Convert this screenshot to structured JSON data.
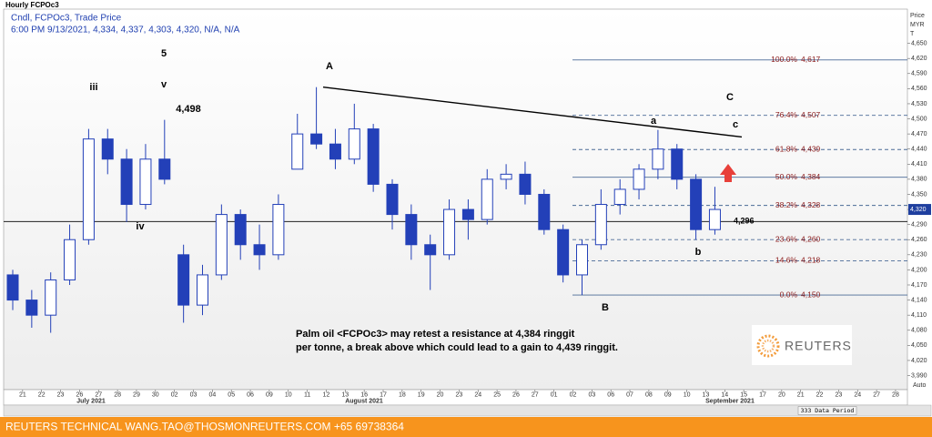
{
  "chart_data": {
    "type": "candlestick",
    "title": "Hourly FCPOc3",
    "subtitle": "Cndl, FCPOc3, Trade Price",
    "info": "6:00 PM 9/13/2021, 4,334, 4,337, 4,303, 4,320, N/A, N/A",
    "y_label_lines": [
      "Price",
      "MYR",
      "T"
    ],
    "months": [
      "July 2021",
      "August 2021",
      "September 2021"
    ],
    "categories": [
      null,
      "21",
      "22",
      "23",
      "26",
      "27",
      "28",
      "29",
      "30",
      "02",
      "03",
      "04",
      "05",
      "06",
      "09",
      "10",
      "11",
      "12",
      "13",
      "16",
      "17",
      "18",
      "19",
      "20",
      "23",
      "24",
      "25",
      "26",
      "27",
      "01",
      "02",
      "03",
      "06",
      "07",
      "08",
      "09",
      "10",
      "13",
      "14",
      "15",
      "17",
      "20",
      "21",
      "22",
      "23",
      "24",
      "27",
      "28"
    ],
    "series": [
      {
        "name": "FCPOc3",
        "up_color": "#2340b8",
        "down_color": "#2340b8",
        "open": [
          4190,
          4140,
          4110,
          4180,
          4260,
          4460,
          4420,
          4330,
          4420,
          4230,
          4130,
          4190,
          4310,
          4250,
          4230,
          4400,
          4470,
          4450,
          4420,
          4480,
          4370,
          4310,
          4250,
          4230,
          4320,
          4300,
          4380,
          4390,
          4350,
          4280,
          4190,
          4250,
          4330,
          4360,
          4400,
          4440,
          4380,
          4280,
          null,
          null,
          null,
          null,
          null,
          null,
          null,
          null,
          null,
          null
        ],
        "high": [
          4200,
          4160,
          4195,
          4290,
          4480,
          4480,
          4440,
          4450,
          4498,
          4250,
          4210,
          4330,
          4320,
          4290,
          4350,
          4510,
          4563,
          4480,
          4530,
          4490,
          4380,
          4330,
          4270,
          4340,
          4340,
          4400,
          4410,
          4415,
          4360,
          4290,
          4260,
          4360,
          4380,
          4410,
          4478,
          4450,
          4390,
          4365,
          null,
          null,
          null,
          null,
          null,
          null,
          null,
          null,
          null,
          null
        ],
        "low": [
          4120,
          4085,
          4075,
          4170,
          4250,
          4390,
          4295,
          4320,
          4370,
          4095,
          4110,
          4180,
          4220,
          4200,
          4220,
          4400,
          4440,
          4400,
          4410,
          4355,
          4280,
          4220,
          4160,
          4220,
          4260,
          4290,
          4360,
          4330,
          4270,
          4175,
          4150,
          4240,
          4310,
          4340,
          4380,
          4360,
          4260,
          4270,
          null,
          null,
          null,
          null,
          null,
          null,
          null,
          null,
          null,
          null
        ],
        "close": [
          4140,
          4110,
          4180,
          4260,
          4460,
          4420,
          4330,
          4420,
          4380,
          4130,
          4190,
          4310,
          4250,
          4230,
          4330,
          4470,
          4450,
          4420,
          4480,
          4370,
          4310,
          4250,
          4230,
          4320,
          4300,
          4380,
          4390,
          4350,
          4280,
          4190,
          4250,
          4330,
          4360,
          4400,
          4440,
          4380,
          4280,
          4320,
          null,
          null,
          null,
          null,
          null,
          null,
          null,
          null,
          null,
          null
        ]
      }
    ],
    "ylim": [
      3962,
      4718
    ],
    "yticks": [
      {
        "value": 4650,
        "label": "4,650"
      },
      {
        "value": 4620,
        "label": "4,620"
      },
      {
        "value": 4590,
        "label": "4,590"
      },
      {
        "value": 4560,
        "label": "4,560"
      },
      {
        "value": 4530,
        "label": "4,530"
      },
      {
        "value": 4500,
        "label": "4,500"
      },
      {
        "value": 4470,
        "label": "4,470"
      },
      {
        "value": 4440,
        "label": "4,440"
      },
      {
        "value": 4410,
        "label": "4,410"
      },
      {
        "value": 4380,
        "label": "4,380"
      },
      {
        "value": 4350,
        "label": "4,350"
      },
      {
        "value": 4320,
        "label": "4,320"
      },
      {
        "value": 4290,
        "label": "4,290"
      },
      {
        "value": 4260,
        "label": "4,260"
      },
      {
        "value": 4230,
        "label": "4,230"
      },
      {
        "value": 4200,
        "label": "4,200"
      },
      {
        "value": 4170,
        "label": "4,170"
      },
      {
        "value": 4140,
        "label": "4,140"
      },
      {
        "value": 4110,
        "label": "4,110"
      },
      {
        "value": 4080,
        "label": "4,080"
      },
      {
        "value": 4050,
        "label": "4,050"
      },
      {
        "value": 4020,
        "label": "4,020"
      },
      {
        "value": 3990,
        "label": "3,990"
      }
    ],
    "grid": false,
    "fib": {
      "percents": [
        "100.0%",
        "76.4%",
        "61.8%",
        "50.0%",
        "38.2%",
        "23.6%",
        "14.6%",
        "0.0%"
      ],
      "values": [
        4617,
        4507,
        4439,
        4384,
        4328,
        4260,
        4218,
        4150
      ],
      "value_labels": [
        "4,617",
        "4,507",
        "4,439",
        "4,384",
        "4,328",
        "4,260",
        "4,218",
        "4,150"
      ],
      "dashed": [
        false,
        true,
        true,
        false,
        true,
        true,
        true,
        false
      ]
    },
    "hline": {
      "value": 4296,
      "label": "4,296"
    },
    "trendline": {
      "start": 4563,
      "end": 4464
    },
    "current_price": {
      "value": 4320,
      "label": "4,320"
    },
    "wave_labels": [
      "iii",
      "5",
      "v",
      "4,498",
      "iv",
      "A",
      "a",
      "C",
      "c",
      "b",
      "B"
    ],
    "note": [
      "Palm oil <FCPOc3> may retest a resistance at 4,384 ringgit",
      "per tonne, a break above which could lead to a gain to 4,439 ringgit."
    ],
    "logo": "REUTERS",
    "data_period": "333 Data Period",
    "auto": "Auto"
  },
  "footer": "REUTERS TECHNICAL  WANG.TAO@THOSMONREUTERS.COM  +65 69738364"
}
